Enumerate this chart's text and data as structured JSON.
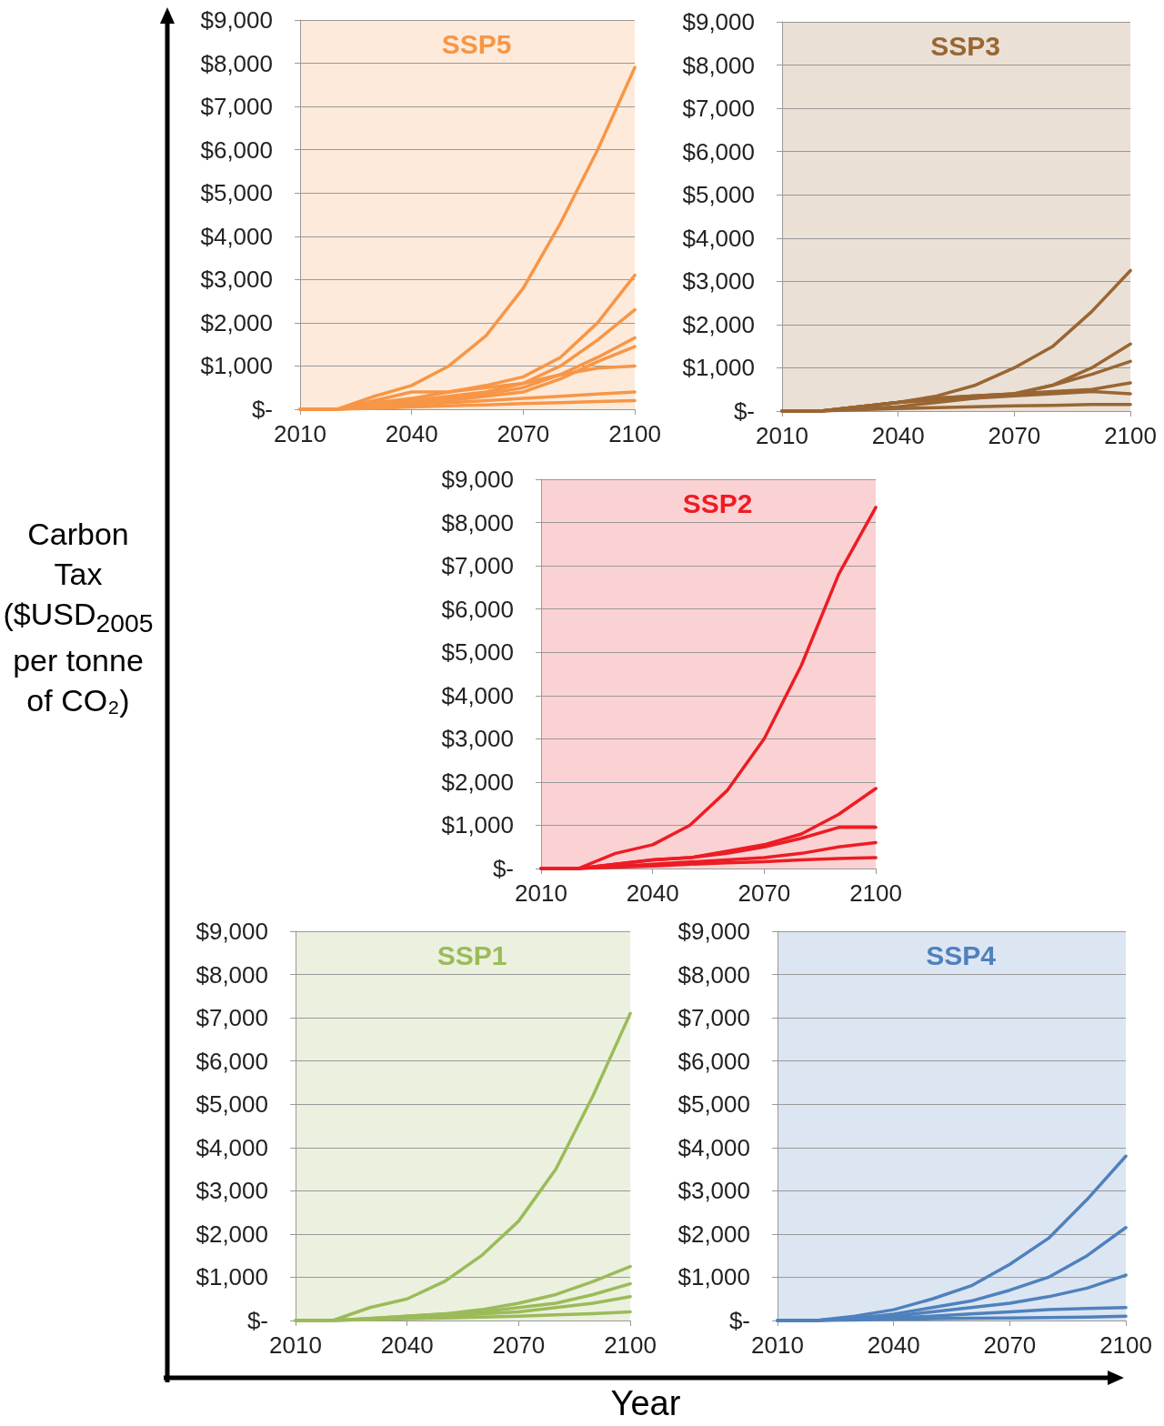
{
  "chart_data": [
    {
      "type": "line",
      "title": "SSP5",
      "xlabel": "Year",
      "ylabel": "Carbon Tax ($USD$_{2005}$ per tonne of CO₂)",
      "x": [
        2010,
        2020,
        2030,
        2040,
        2050,
        2060,
        2070,
        2080,
        2090,
        2100
      ],
      "xlim": [
        2010,
        2100
      ],
      "xticks": [
        2010,
        2040,
        2070,
        2100
      ],
      "ylim": [
        0,
        9000
      ],
      "yticks": [
        {
          "value": 0,
          "label": "$-"
        },
        {
          "value": 1000,
          "label": "$1,000"
        },
        {
          "value": 2000,
          "label": "$2,000"
        },
        {
          "value": 3000,
          "label": "$3,000"
        },
        {
          "value": 4000,
          "label": "$4,000"
        },
        {
          "value": 5000,
          "label": "$5,000"
        },
        {
          "value": 6000,
          "label": "$6,000"
        },
        {
          "value": 7000,
          "label": "$7,000"
        },
        {
          "value": 8000,
          "label": "$8,000"
        },
        {
          "value": 9000,
          "label": "$9,000"
        }
      ],
      "grid": "y",
      "marker": "none",
      "line_style": "solid",
      "series": [
        {
          "color": "#f79646",
          "values": [
            0,
            0,
            300,
            550,
            1000,
            1700,
            2800,
            4300,
            6000,
            7900
          ]
        },
        {
          "color": "#f79646",
          "values": [
            0,
            0,
            150,
            250,
            400,
            550,
            750,
            1200,
            2000,
            3100
          ]
        },
        {
          "color": "#f79646",
          "values": [
            0,
            0,
            100,
            200,
            300,
            400,
            600,
            1000,
            1600,
            2300
          ]
        },
        {
          "color": "#f79646",
          "values": [
            0,
            0,
            50,
            150,
            250,
            350,
            500,
            800,
            1200,
            1650
          ]
        },
        {
          "color": "#f79646",
          "values": [
            0,
            0,
            50,
            100,
            200,
            300,
            400,
            700,
            1100,
            1450
          ]
        },
        {
          "color": "#f79646",
          "values": [
            0,
            0,
            200,
            400,
            400,
            500,
            600,
            800,
            950,
            1000
          ]
        },
        {
          "color": "#f79646",
          "values": [
            0,
            0,
            50,
            100,
            150,
            200,
            250,
            300,
            350,
            400
          ]
        },
        {
          "color": "#f79646",
          "values": [
            0,
            0,
            20,
            50,
            80,
            100,
            130,
            150,
            180,
            200
          ]
        }
      ]
    },
    {
      "type": "line",
      "title": "SSP3",
      "x": [
        2010,
        2020,
        2030,
        2040,
        2050,
        2060,
        2070,
        2080,
        2090,
        2100
      ],
      "xlim": [
        2010,
        2100
      ],
      "xticks": [
        2010,
        2040,
        2070,
        2100
      ],
      "ylim": [
        0,
        9000
      ],
      "yticks": [
        {
          "value": 0,
          "label": "$-"
        },
        {
          "value": 1000,
          "label": "$1,000"
        },
        {
          "value": 2000,
          "label": "$2,000"
        },
        {
          "value": 3000,
          "label": "$3,000"
        },
        {
          "value": 4000,
          "label": "$4,000"
        },
        {
          "value": 5000,
          "label": "$5,000"
        },
        {
          "value": 6000,
          "label": "$6,000"
        },
        {
          "value": 7000,
          "label": "$7,000"
        },
        {
          "value": 8000,
          "label": "$8,000"
        },
        {
          "value": 9000,
          "label": "$9,000"
        }
      ],
      "grid": "y",
      "marker": "none",
      "line_style": "solid",
      "series": [
        {
          "color": "#996633",
          "values": [
            0,
            0,
            100,
            200,
            350,
            600,
            1000,
            1500,
            2300,
            3250
          ]
        },
        {
          "color": "#996633",
          "values": [
            0,
            0,
            100,
            200,
            300,
            350,
            400,
            600,
            1000,
            1550
          ]
        },
        {
          "color": "#996633",
          "values": [
            0,
            0,
            100,
            200,
            250,
            300,
            400,
            600,
            850,
            1150
          ]
        },
        {
          "color": "#996633",
          "values": [
            0,
            0,
            100,
            200,
            300,
            350,
            400,
            450,
            500,
            650
          ]
        },
        {
          "color": "#996633",
          "values": [
            0,
            0,
            50,
            100,
            200,
            300,
            350,
            400,
            450,
            400
          ]
        },
        {
          "color": "#996633",
          "values": [
            0,
            0,
            30,
            60,
            80,
            100,
            120,
            130,
            150,
            150
          ]
        }
      ]
    },
    {
      "type": "line",
      "title": "SSP2",
      "x": [
        2010,
        2020,
        2030,
        2040,
        2050,
        2060,
        2070,
        2080,
        2090,
        2100
      ],
      "xlim": [
        2010,
        2100
      ],
      "xticks": [
        2010,
        2040,
        2070,
        2100
      ],
      "ylim": [
        0,
        9000
      ],
      "yticks": [
        {
          "value": 0,
          "label": "$-"
        },
        {
          "value": 1000,
          "label": "$1,000"
        },
        {
          "value": 2000,
          "label": "$2,000"
        },
        {
          "value": 3000,
          "label": "$3,000"
        },
        {
          "value": 4000,
          "label": "$4,000"
        },
        {
          "value": 5000,
          "label": "$5,000"
        },
        {
          "value": 6000,
          "label": "$6,000"
        },
        {
          "value": 7000,
          "label": "$7,000"
        },
        {
          "value": 8000,
          "label": "$8,000"
        },
        {
          "value": 9000,
          "label": "$9,000"
        }
      ],
      "grid": "y",
      "marker": "none",
      "line_style": "solid",
      "series": [
        {
          "color": "#ed1c24",
          "values": [
            0,
            0,
            350,
            550,
            1000,
            1800,
            3000,
            4700,
            6800,
            8350
          ]
        },
        {
          "color": "#ed1c24",
          "values": [
            0,
            0,
            100,
            200,
            250,
            400,
            550,
            800,
            1250,
            1850
          ]
        },
        {
          "color": "#ed1c24",
          "values": [
            0,
            0,
            100,
            200,
            250,
            350,
            500,
            700,
            950,
            950
          ]
        },
        {
          "color": "#ed1c24",
          "values": [
            0,
            0,
            50,
            100,
            150,
            200,
            250,
            350,
            500,
            600
          ]
        },
        {
          "color": "#ed1c24",
          "values": [
            0,
            0,
            30,
            60,
            100,
            130,
            160,
            200,
            230,
            250
          ]
        }
      ]
    },
    {
      "type": "line",
      "title": "SSP1",
      "x": [
        2010,
        2020,
        2030,
        2040,
        2050,
        2060,
        2070,
        2080,
        2090,
        2100
      ],
      "xlim": [
        2010,
        2100
      ],
      "xticks": [
        2010,
        2040,
        2070,
        2100
      ],
      "ylim": [
        0,
        9000
      ],
      "yticks": [
        {
          "value": 0,
          "label": "$-"
        },
        {
          "value": 1000,
          "label": "$1,000"
        },
        {
          "value": 2000,
          "label": "$2,000"
        },
        {
          "value": 3000,
          "label": "$3,000"
        },
        {
          "value": 4000,
          "label": "$4,000"
        },
        {
          "value": 5000,
          "label": "$5,000"
        },
        {
          "value": 6000,
          "label": "$6,000"
        },
        {
          "value": 7000,
          "label": "$7,000"
        },
        {
          "value": 8000,
          "label": "$8,000"
        },
        {
          "value": 9000,
          "label": "$9,000"
        }
      ],
      "grid": "y",
      "marker": "none",
      "line_style": "solid",
      "series": [
        {
          "color": "#9bbb59",
          "values": [
            0,
            0,
            300,
            500,
            900,
            1500,
            2300,
            3500,
            5200,
            7100
          ]
        },
        {
          "color": "#9bbb59",
          "values": [
            0,
            0,
            50,
            100,
            150,
            250,
            400,
            600,
            900,
            1250
          ]
        },
        {
          "color": "#9bbb59",
          "values": [
            0,
            0,
            50,
            100,
            150,
            200,
            300,
            400,
            600,
            850
          ]
        },
        {
          "color": "#9bbb59",
          "values": [
            0,
            0,
            30,
            60,
            100,
            150,
            200,
            300,
            400,
            550
          ]
        },
        {
          "color": "#9bbb59",
          "values": [
            0,
            0,
            20,
            40,
            60,
            80,
            100,
            130,
            160,
            200
          ]
        }
      ]
    },
    {
      "type": "line",
      "title": "SSP4",
      "x": [
        2010,
        2020,
        2030,
        2040,
        2050,
        2060,
        2070,
        2080,
        2090,
        2100
      ],
      "xlim": [
        2010,
        2100
      ],
      "xticks": [
        2010,
        2040,
        2070,
        2100
      ],
      "ylim": [
        0,
        9000
      ],
      "yticks": [
        {
          "value": 0,
          "label": "$-"
        },
        {
          "value": 1000,
          "label": "$1,000"
        },
        {
          "value": 2000,
          "label": "$2,000"
        },
        {
          "value": 3000,
          "label": "$3,000"
        },
        {
          "value": 4000,
          "label": "$4,000"
        },
        {
          "value": 5000,
          "label": "$5,000"
        },
        {
          "value": 6000,
          "label": "$6,000"
        },
        {
          "value": 7000,
          "label": "$7,000"
        },
        {
          "value": 8000,
          "label": "$8,000"
        },
        {
          "value": 9000,
          "label": "$9,000"
        }
      ],
      "grid": "y",
      "marker": "none",
      "line_style": "solid",
      "series": [
        {
          "color": "#4f81bd",
          "values": [
            0,
            0,
            100,
            250,
            500,
            800,
            1300,
            1900,
            2800,
            3800
          ]
        },
        {
          "color": "#4f81bd",
          "values": [
            0,
            0,
            50,
            150,
            300,
            450,
            700,
            1000,
            1500,
            2150
          ]
        },
        {
          "color": "#4f81bd",
          "values": [
            0,
            0,
            50,
            100,
            200,
            300,
            400,
            550,
            750,
            1050
          ]
        },
        {
          "color": "#4f81bd",
          "values": [
            0,
            0,
            30,
            60,
            100,
            150,
            200,
            250,
            280,
            300
          ]
        },
        {
          "color": "#4f81bd",
          "values": [
            0,
            0,
            10,
            30,
            40,
            50,
            60,
            70,
            80,
            100
          ]
        }
      ]
    }
  ]
}
